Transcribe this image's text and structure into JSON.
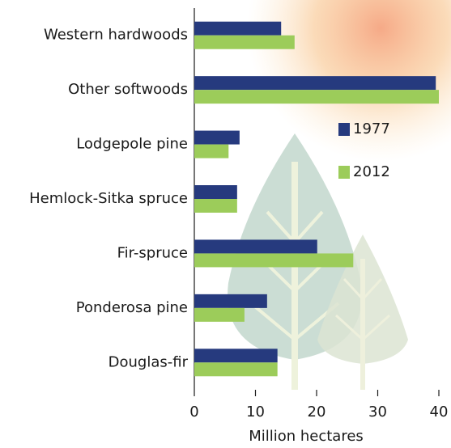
{
  "chart_data": {
    "type": "bar",
    "orientation": "horizontal",
    "categories": [
      "Western hardwoods",
      "Other softwoods",
      "Lodgepole pine",
      "Hemlock-Sitka spruce",
      "Fir-spruce",
      "Ponderosa pine",
      "Douglas-fir"
    ],
    "series": [
      {
        "name": "1977",
        "color": "#263a7e",
        "values": [
          14.2,
          39.5,
          7.4,
          7.0,
          20.1,
          11.9,
          13.6
        ]
      },
      {
        "name": "2012",
        "color": "#9ccc5a",
        "values": [
          16.4,
          40,
          5.6,
          7.0,
          26.0,
          8.2,
          13.6
        ]
      }
    ],
    "xlim": [
      0,
      40
    ],
    "xticks": [
      0,
      10,
      20,
      30,
      40
    ],
    "xlabel": "Million hectares"
  }
}
